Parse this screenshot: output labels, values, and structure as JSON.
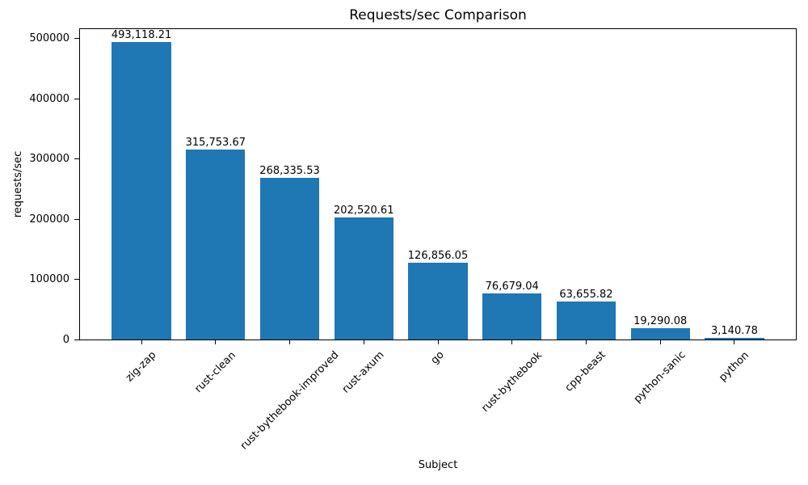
{
  "chart_data": {
    "type": "bar",
    "title": "Requests/sec Comparison",
    "xlabel": "Subject",
    "ylabel": "requests/sec",
    "categories": [
      "zig-zap",
      "rust-clean",
      "rust-bythebook-improved",
      "rust-axum",
      "go",
      "rust-bythebook",
      "cpp-beast",
      "python-sanic",
      "python"
    ],
    "values": [
      493118.21,
      315753.67,
      268335.53,
      202520.61,
      126856.05,
      76679.04,
      63655.82,
      19290.08,
      3140.78
    ],
    "value_labels": [
      "493,118.21",
      "315,753.67",
      "268,335.53",
      "202,520.61",
      "126,856.05",
      "76,679.04",
      "63,655.82",
      "19,290.08",
      "3,140.78"
    ],
    "yticks": [
      0,
      100000,
      200000,
      300000,
      400000,
      500000
    ],
    "ytick_labels": [
      "0",
      "100000",
      "200000",
      "300000",
      "400000",
      "500000"
    ],
    "ylim": [
      0,
      517774
    ],
    "bar_color": "#1f77b4",
    "bar_rel_width": 0.8,
    "grid": false,
    "legend": "none"
  }
}
